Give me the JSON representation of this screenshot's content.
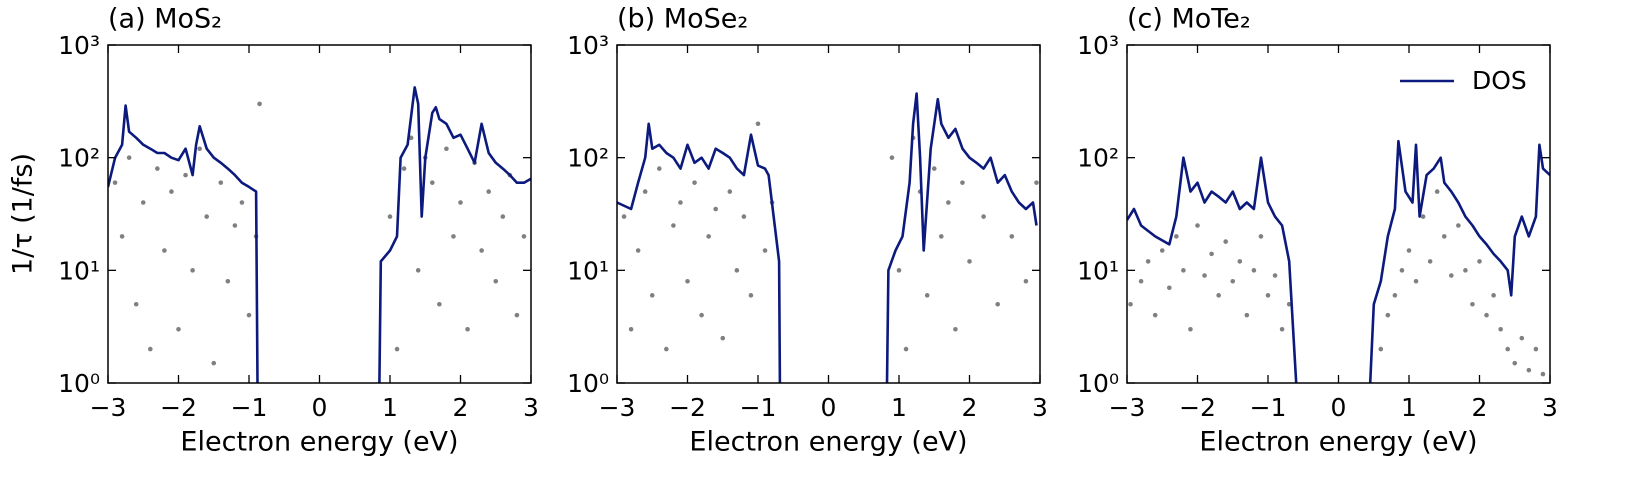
{
  "chart_data": [
    {
      "type": "scatter",
      "title": "(a) MoS₂",
      "xlabel": "Electron energy (eV)",
      "ylabel": "1/τ (1/fs)",
      "log_y": true,
      "xlim": [
        -3,
        3
      ],
      "ylim": [
        1,
        1000
      ],
      "xticks": [
        {
          "value": -3,
          "label": "−3"
        },
        {
          "value": -2,
          "label": "−2"
        },
        {
          "value": -1,
          "label": "−1"
        },
        0,
        1,
        2,
        3
      ],
      "yticks": [
        {
          "value": 1,
          "label": "10⁰"
        },
        {
          "value": 10,
          "label": "10¹"
        },
        {
          "value": 100,
          "label": "10²"
        },
        {
          "value": 1000,
          "label": "10³"
        }
      ],
      "series": [
        {
          "type": "scatter",
          "color": "#808080",
          "x": [
            -2.9,
            -2.8,
            -2.7,
            -2.6,
            -2.5,
            -2.4,
            -2.3,
            -2.2,
            -2.1,
            -2.0,
            -1.9,
            -1.8,
            -1.7,
            -1.6,
            -1.5,
            -1.4,
            -1.3,
            -1.2,
            -1.1,
            -1.0,
            -0.9,
            -0.85,
            1.0,
            1.1,
            1.2,
            1.3,
            1.4,
            1.5,
            1.6,
            1.7,
            1.8,
            1.9,
            2.0,
            2.1,
            2.2,
            2.3,
            2.4,
            2.5,
            2.6,
            2.7,
            2.8,
            2.9
          ],
          "values": [
            60,
            20,
            100,
            5,
            40,
            2,
            80,
            15,
            50,
            3,
            70,
            10,
            120,
            30,
            1.5,
            60,
            8,
            25,
            40,
            4,
            20,
            300,
            30,
            2,
            80,
            150,
            10,
            100,
            60,
            5,
            120,
            20,
            40,
            3,
            90,
            15,
            50,
            8,
            30,
            70,
            4,
            20
          ]
        },
        {
          "type": "line",
          "color": "#0c1a7e",
          "x": [
            -3,
            -2.9,
            -2.8,
            -2.75,
            -2.7,
            -2.6,
            -2.5,
            -2.4,
            -2.3,
            -2.2,
            -2.1,
            -2.0,
            -1.9,
            -1.8,
            -1.75,
            -1.7,
            -1.6,
            -1.5,
            -1.4,
            -1.3,
            -1.2,
            -1.1,
            -1.0,
            -0.9,
            -0.88,
            0,
            0.85,
            0.87,
            1.0,
            1.1,
            1.15,
            1.25,
            1.35,
            1.4,
            1.45,
            1.5,
            1.6,
            1.65,
            1.7,
            1.8,
            1.9,
            2.0,
            2.1,
            2.2,
            2.3,
            2.4,
            2.5,
            2.6,
            2.7,
            2.8,
            2.9,
            3.0
          ],
          "values": [
            55,
            100,
            130,
            290,
            170,
            150,
            130,
            120,
            110,
            110,
            100,
            95,
            120,
            70,
            130,
            190,
            120,
            100,
            90,
            80,
            70,
            60,
            55,
            50,
            1,
            null,
            1,
            12,
            15,
            20,
            100,
            130,
            420,
            300,
            30,
            100,
            250,
            280,
            220,
            200,
            150,
            160,
            120,
            90,
            200,
            110,
            90,
            80,
            70,
            60,
            60,
            65
          ]
        }
      ]
    },
    {
      "type": "scatter",
      "title": "(b) MoSe₂",
      "xlabel": "Electron energy (eV)",
      "log_y": true,
      "xlim": [
        -3,
        3
      ],
      "ylim": [
        1,
        1000
      ],
      "xticks": [
        {
          "value": -3,
          "label": "−3"
        },
        {
          "value": -2,
          "label": "−2"
        },
        {
          "value": -1,
          "label": "−1"
        },
        0,
        1,
        2,
        3
      ],
      "yticks": [
        {
          "value": 1,
          "label": "10⁰"
        },
        {
          "value": 10,
          "label": "10¹"
        },
        {
          "value": 100,
          "label": "10²"
        },
        {
          "value": 1000,
          "label": "10³"
        }
      ],
      "series": [
        {
          "type": "scatter",
          "color": "#808080",
          "x": [
            -2.9,
            -2.8,
            -2.7,
            -2.6,
            -2.5,
            -2.4,
            -2.3,
            -2.2,
            -2.1,
            -2.0,
            -1.9,
            -1.8,
            -1.7,
            -1.6,
            -1.5,
            -1.4,
            -1.3,
            -1.2,
            -1.1,
            -1.0,
            -0.9,
            -0.8,
            0.9,
            1.0,
            1.1,
            1.2,
            1.3,
            1.4,
            1.5,
            1.6,
            1.7,
            1.8,
            1.9,
            2.0,
            2.2,
            2.4,
            2.6,
            2.8,
            2.95
          ],
          "values": [
            30,
            3,
            15,
            50,
            6,
            80,
            2,
            25,
            40,
            8,
            60,
            4,
            20,
            35,
            2.5,
            50,
            10,
            30,
            6,
            200,
            15,
            40,
            100,
            10,
            2,
            150,
            50,
            6,
            80,
            20,
            40,
            3,
            60,
            12,
            30,
            5,
            20,
            8,
            60
          ]
        },
        {
          "type": "line",
          "color": "#0c1a7e",
          "x": [
            -3,
            -2.8,
            -2.7,
            -2.6,
            -2.55,
            -2.5,
            -2.4,
            -2.3,
            -2.2,
            -2.1,
            -2.0,
            -1.9,
            -1.8,
            -1.7,
            -1.6,
            -1.5,
            -1.4,
            -1.3,
            -1.2,
            -1.1,
            -1.0,
            -0.9,
            -0.85,
            -0.7,
            -0.69,
            0,
            0.83,
            0.85,
            0.95,
            1.05,
            1.15,
            1.2,
            1.25,
            1.3,
            1.35,
            1.45,
            1.55,
            1.6,
            1.7,
            1.8,
            1.9,
            2.0,
            2.1,
            2.2,
            2.3,
            2.4,
            2.5,
            2.6,
            2.7,
            2.8,
            2.9,
            2.95
          ],
          "values": [
            40,
            35,
            60,
            100,
            200,
            120,
            130,
            110,
            100,
            80,
            130,
            90,
            100,
            80,
            120,
            110,
            100,
            80,
            70,
            160,
            85,
            80,
            70,
            12,
            1,
            null,
            1,
            10,
            15,
            20,
            60,
            200,
            370,
            100,
            15,
            120,
            330,
            200,
            150,
            180,
            120,
            100,
            90,
            80,
            100,
            60,
            70,
            50,
            40,
            35,
            40,
            25
          ]
        }
      ]
    },
    {
      "type": "scatter",
      "title": "(c) MoTe₂",
      "xlabel": "Electron energy (eV)",
      "log_y": true,
      "legend": "upper right",
      "xlim": [
        -3,
        3
      ],
      "ylim": [
        1,
        1000
      ],
      "xticks": [
        {
          "value": -3,
          "label": "−3"
        },
        {
          "value": -2,
          "label": "−2"
        },
        {
          "value": -1,
          "label": "−1"
        },
        0,
        1,
        2,
        3
      ],
      "yticks": [
        {
          "value": 1,
          "label": "10⁰"
        },
        {
          "value": 10,
          "label": "10¹"
        },
        {
          "value": 100,
          "label": "10²"
        },
        {
          "value": 1000,
          "label": "10³"
        }
      ],
      "series": [
        {
          "type": "scatter",
          "color": "#808080",
          "x": [
            -2.95,
            -2.8,
            -2.7,
            -2.6,
            -2.5,
            -2.4,
            -2.3,
            -2.2,
            -2.1,
            -2.0,
            -1.9,
            -1.8,
            -1.7,
            -1.6,
            -1.5,
            -1.4,
            -1.3,
            -1.2,
            -1.1,
            -1.0,
            -0.9,
            -0.8,
            -0.7,
            0.6,
            0.7,
            0.8,
            0.9,
            1.0,
            1.1,
            1.2,
            1.3,
            1.4,
            1.5,
            1.6,
            1.7,
            1.8,
            1.9,
            2.0,
            2.1,
            2.2,
            2.3,
            2.4,
            2.5,
            2.6,
            2.7,
            2.8,
            2.9
          ],
          "values": [
            5,
            8,
            12,
            4,
            15,
            7,
            20,
            10,
            3,
            25,
            9,
            14,
            6,
            18,
            8,
            12,
            4,
            10,
            20,
            6,
            9,
            3,
            5,
            2,
            4,
            6,
            10,
            15,
            8,
            30,
            12,
            50,
            20,
            9,
            25,
            10,
            5,
            12,
            4,
            6,
            3,
            2,
            1.5,
            2.5,
            1.3,
            2,
            1.2
          ]
        },
        {
          "type": "line",
          "name": "DOS",
          "color": "#0c1a7e",
          "x": [
            -3,
            -2.9,
            -2.8,
            -2.6,
            -2.4,
            -2.3,
            -2.2,
            -2.1,
            -2.0,
            -1.9,
            -1.8,
            -1.7,
            -1.6,
            -1.5,
            -1.4,
            -1.3,
            -1.2,
            -1.1,
            -1.0,
            -0.9,
            -0.8,
            -0.7,
            -0.6,
            0,
            0.45,
            0.5,
            0.6,
            0.7,
            0.8,
            0.85,
            0.95,
            1.05,
            1.1,
            1.15,
            1.25,
            1.35,
            1.45,
            1.5,
            1.6,
            1.7,
            1.8,
            1.9,
            2.0,
            2.1,
            2.2,
            2.3,
            2.4,
            2.45,
            2.5,
            2.6,
            2.7,
            2.8,
            2.85,
            2.9,
            3.0
          ],
          "values": [
            28,
            35,
            25,
            20,
            17,
            30,
            100,
            50,
            60,
            40,
            50,
            45,
            40,
            50,
            35,
            40,
            35,
            100,
            40,
            30,
            25,
            12,
            1,
            null,
            1,
            5,
            8,
            20,
            35,
            140,
            50,
            40,
            130,
            30,
            70,
            80,
            100,
            60,
            50,
            40,
            30,
            25,
            20,
            17,
            14,
            12,
            10,
            6,
            20,
            30,
            20,
            30,
            130,
            80,
            70
          ]
        }
      ]
    }
  ]
}
